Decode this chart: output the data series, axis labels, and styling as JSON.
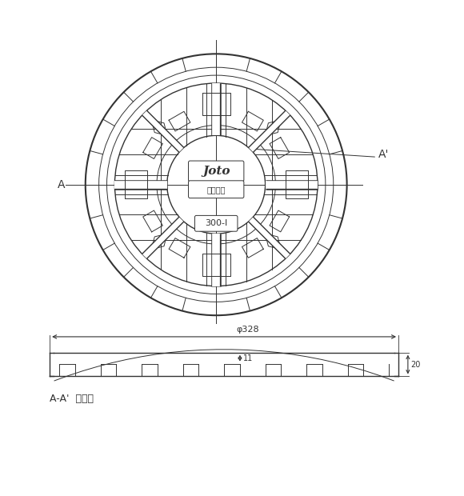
{
  "bg_color": "#ffffff",
  "line_color": "#333333",
  "joto_text": "Joto",
  "kanji_text": "重設禁止",
  "model_text": "300-I",
  "dim_phi": "φ328",
  "dim_11": "11",
  "dim_20": "20",
  "cross_section_label": "A-A'  断面図",
  "label_A": "A",
  "label_Aprime": "A'",
  "font_size_labels": 9,
  "font_size_dims": 8,
  "font_size_cross_label": 9
}
